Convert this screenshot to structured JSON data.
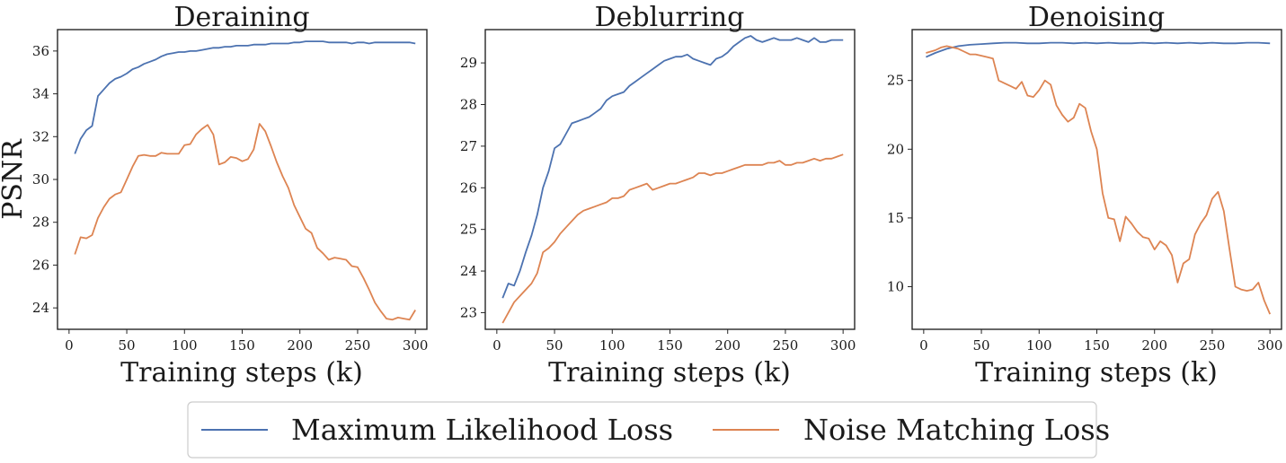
{
  "colors": {
    "max_likelihood": "#4c72b0",
    "noise_matching": "#dd8452"
  },
  "legend": {
    "placement": "bottom-center",
    "entries": [
      "Maximum Likelihood Loss",
      "Noise Matching Loss"
    ]
  },
  "chart_data": [
    {
      "type": "line",
      "title": "Deraining",
      "xlabel": "Training steps (k)",
      "ylabel": "PSNR",
      "xlim": [
        -10,
        310
      ],
      "ylim": [
        23.0,
        37.0
      ],
      "xticks": [
        0,
        50,
        100,
        150,
        200,
        250,
        300
      ],
      "yticks": [
        24,
        26,
        28,
        30,
        32,
        34,
        36
      ],
      "grid": false,
      "series": [
        {
          "name": "Maximum Likelihood Loss",
          "x": [
            5,
            10,
            15,
            20,
            25,
            30,
            35,
            40,
            45,
            50,
            55,
            60,
            65,
            70,
            75,
            80,
            85,
            90,
            95,
            100,
            105,
            110,
            115,
            120,
            125,
            130,
            135,
            140,
            145,
            150,
            155,
            160,
            165,
            170,
            175,
            180,
            185,
            190,
            195,
            200,
            205,
            210,
            215,
            220,
            225,
            230,
            235,
            240,
            245,
            250,
            255,
            260,
            265,
            270,
            275,
            280,
            285,
            290,
            295,
            300
          ],
          "y": [
            31.2,
            31.9,
            32.3,
            32.5,
            33.9,
            34.2,
            34.5,
            34.7,
            34.8,
            34.95,
            35.15,
            35.25,
            35.4,
            35.5,
            35.6,
            35.75,
            35.85,
            35.9,
            35.95,
            35.95,
            36.0,
            36.0,
            36.05,
            36.1,
            36.15,
            36.15,
            36.2,
            36.2,
            36.25,
            36.25,
            36.25,
            36.3,
            36.3,
            36.3,
            36.35,
            36.35,
            36.35,
            36.35,
            36.4,
            36.4,
            36.45,
            36.45,
            36.45,
            36.45,
            36.4,
            36.4,
            36.4,
            36.4,
            36.35,
            36.4,
            36.4,
            36.35,
            36.4,
            36.4,
            36.4,
            36.4,
            36.4,
            36.4,
            36.4,
            36.35
          ]
        },
        {
          "name": "Noise Matching Loss",
          "x": [
            5,
            10,
            15,
            20,
            25,
            30,
            35,
            40,
            45,
            50,
            55,
            60,
            65,
            70,
            75,
            80,
            85,
            90,
            95,
            100,
            105,
            110,
            115,
            120,
            125,
            130,
            135,
            140,
            145,
            150,
            155,
            160,
            165,
            170,
            175,
            180,
            185,
            190,
            195,
            200,
            205,
            210,
            215,
            220,
            225,
            230,
            235,
            240,
            245,
            250,
            255,
            260,
            265,
            270,
            275,
            280,
            285,
            290,
            295,
            300
          ],
          "y": [
            26.5,
            27.3,
            27.25,
            27.4,
            28.2,
            28.7,
            29.1,
            29.3,
            29.4,
            30.0,
            30.6,
            31.1,
            31.15,
            31.1,
            31.1,
            31.25,
            31.2,
            31.2,
            31.2,
            31.6,
            31.65,
            32.1,
            32.35,
            32.55,
            32.1,
            30.7,
            30.8,
            31.05,
            31.0,
            30.85,
            30.95,
            31.4,
            32.6,
            32.25,
            31.55,
            30.8,
            30.15,
            29.6,
            28.8,
            28.25,
            27.7,
            27.5,
            26.8,
            26.55,
            26.25,
            26.35,
            26.3,
            26.25,
            25.95,
            25.9,
            25.4,
            24.85,
            24.25,
            23.85,
            23.5,
            23.45,
            23.55,
            23.5,
            23.45,
            23.9
          ]
        }
      ]
    },
    {
      "type": "line",
      "title": "Deblurring",
      "xlabel": "Training steps (k)",
      "ylabel": "",
      "xlim": [
        -10,
        310
      ],
      "ylim": [
        22.6,
        29.8
      ],
      "xticks": [
        0,
        50,
        100,
        150,
        200,
        250,
        300
      ],
      "yticks": [
        23,
        24,
        25,
        26,
        27,
        28,
        29
      ],
      "grid": false,
      "series": [
        {
          "name": "Maximum Likelihood Loss",
          "x": [
            5,
            10,
            15,
            20,
            25,
            30,
            35,
            40,
            45,
            50,
            55,
            60,
            65,
            70,
            75,
            80,
            85,
            90,
            95,
            100,
            105,
            110,
            115,
            120,
            125,
            130,
            135,
            140,
            145,
            150,
            155,
            160,
            165,
            170,
            175,
            180,
            185,
            190,
            195,
            200,
            205,
            210,
            215,
            220,
            225,
            230,
            235,
            240,
            245,
            250,
            255,
            260,
            265,
            270,
            275,
            280,
            285,
            290,
            295,
            300
          ],
          "y": [
            23.35,
            23.7,
            23.65,
            24.0,
            24.45,
            24.85,
            25.35,
            26.0,
            26.4,
            26.95,
            27.05,
            27.3,
            27.55,
            27.6,
            27.65,
            27.7,
            27.8,
            27.9,
            28.1,
            28.2,
            28.25,
            28.3,
            28.45,
            28.55,
            28.65,
            28.75,
            28.85,
            28.95,
            29.05,
            29.1,
            29.15,
            29.15,
            29.2,
            29.1,
            29.05,
            29.0,
            28.95,
            29.1,
            29.15,
            29.25,
            29.4,
            29.5,
            29.6,
            29.65,
            29.55,
            29.5,
            29.55,
            29.6,
            29.55,
            29.55,
            29.55,
            29.6,
            29.55,
            29.5,
            29.6,
            29.5,
            29.5,
            29.55,
            29.55,
            29.55
          ]
        },
        {
          "name": "Noise Matching Loss",
          "x": [
            5,
            10,
            15,
            20,
            25,
            30,
            35,
            40,
            45,
            50,
            55,
            60,
            65,
            70,
            75,
            80,
            85,
            90,
            95,
            100,
            105,
            110,
            115,
            120,
            125,
            130,
            135,
            140,
            145,
            150,
            155,
            160,
            165,
            170,
            175,
            180,
            185,
            190,
            195,
            200,
            205,
            210,
            215,
            220,
            225,
            230,
            235,
            240,
            245,
            250,
            255,
            260,
            265,
            270,
            275,
            280,
            285,
            290,
            295,
            300
          ],
          "y": [
            22.75,
            23.0,
            23.25,
            23.4,
            23.55,
            23.7,
            23.95,
            24.45,
            24.55,
            24.7,
            24.9,
            25.05,
            25.2,
            25.35,
            25.45,
            25.5,
            25.55,
            25.6,
            25.65,
            25.75,
            25.75,
            25.8,
            25.95,
            26.0,
            26.05,
            26.1,
            25.95,
            26.0,
            26.05,
            26.1,
            26.1,
            26.15,
            26.2,
            26.25,
            26.35,
            26.35,
            26.3,
            26.35,
            26.35,
            26.4,
            26.45,
            26.5,
            26.55,
            26.55,
            26.55,
            26.55,
            26.6,
            26.6,
            26.65,
            26.55,
            26.55,
            26.6,
            26.6,
            26.65,
            26.7,
            26.65,
            26.7,
            26.7,
            26.75,
            26.8
          ]
        }
      ]
    },
    {
      "type": "line",
      "title": "Denoising",
      "xlabel": "Training steps (k)",
      "ylabel": "",
      "xlim": [
        -10,
        310
      ],
      "ylim": [
        6.9,
        28.7
      ],
      "xticks": [
        0,
        50,
        100,
        150,
        200,
        250,
        300
      ],
      "yticks": [
        10,
        15,
        20,
        25
      ],
      "grid": false,
      "series": [
        {
          "name": "Maximum Likelihood Loss",
          "x": [
            2,
            10,
            20,
            30,
            40,
            50,
            60,
            70,
            80,
            90,
            100,
            110,
            120,
            130,
            140,
            150,
            160,
            170,
            180,
            190,
            200,
            210,
            220,
            230,
            240,
            250,
            260,
            270,
            280,
            290,
            300
          ],
          "y": [
            26.7,
            27.0,
            27.3,
            27.5,
            27.6,
            27.65,
            27.7,
            27.75,
            27.75,
            27.7,
            27.7,
            27.75,
            27.75,
            27.7,
            27.75,
            27.7,
            27.75,
            27.7,
            27.7,
            27.75,
            27.7,
            27.75,
            27.7,
            27.75,
            27.7,
            27.75,
            27.7,
            27.7,
            27.75,
            27.75,
            27.7
          ]
        },
        {
          "name": "Noise Matching Loss",
          "x": [
            2,
            10,
            15,
            20,
            25,
            30,
            35,
            40,
            45,
            50,
            55,
            60,
            65,
            70,
            75,
            80,
            85,
            90,
            95,
            100,
            105,
            110,
            115,
            120,
            125,
            130,
            135,
            140,
            145,
            150,
            155,
            160,
            165,
            170,
            175,
            180,
            185,
            190,
            195,
            200,
            205,
            210,
            215,
            220,
            225,
            230,
            235,
            240,
            245,
            250,
            255,
            260,
            265,
            270,
            275,
            280,
            285,
            290,
            295,
            300
          ],
          "y": [
            27.0,
            27.2,
            27.4,
            27.5,
            27.4,
            27.3,
            27.1,
            26.9,
            26.9,
            26.8,
            26.7,
            26.6,
            25.0,
            24.8,
            24.6,
            24.4,
            24.9,
            23.9,
            23.8,
            24.3,
            25.0,
            24.7,
            23.2,
            22.5,
            22.0,
            22.3,
            23.3,
            23.0,
            21.3,
            20.0,
            16.8,
            15.0,
            14.9,
            13.3,
            15.1,
            14.6,
            14.0,
            13.6,
            13.5,
            12.7,
            13.3,
            13.0,
            12.3,
            10.3,
            11.7,
            12.0,
            13.8,
            14.6,
            15.2,
            16.4,
            16.9,
            15.5,
            12.7,
            10.0,
            9.8,
            9.7,
            9.8,
            10.3,
            9.0,
            8.0
          ]
        }
      ]
    }
  ]
}
